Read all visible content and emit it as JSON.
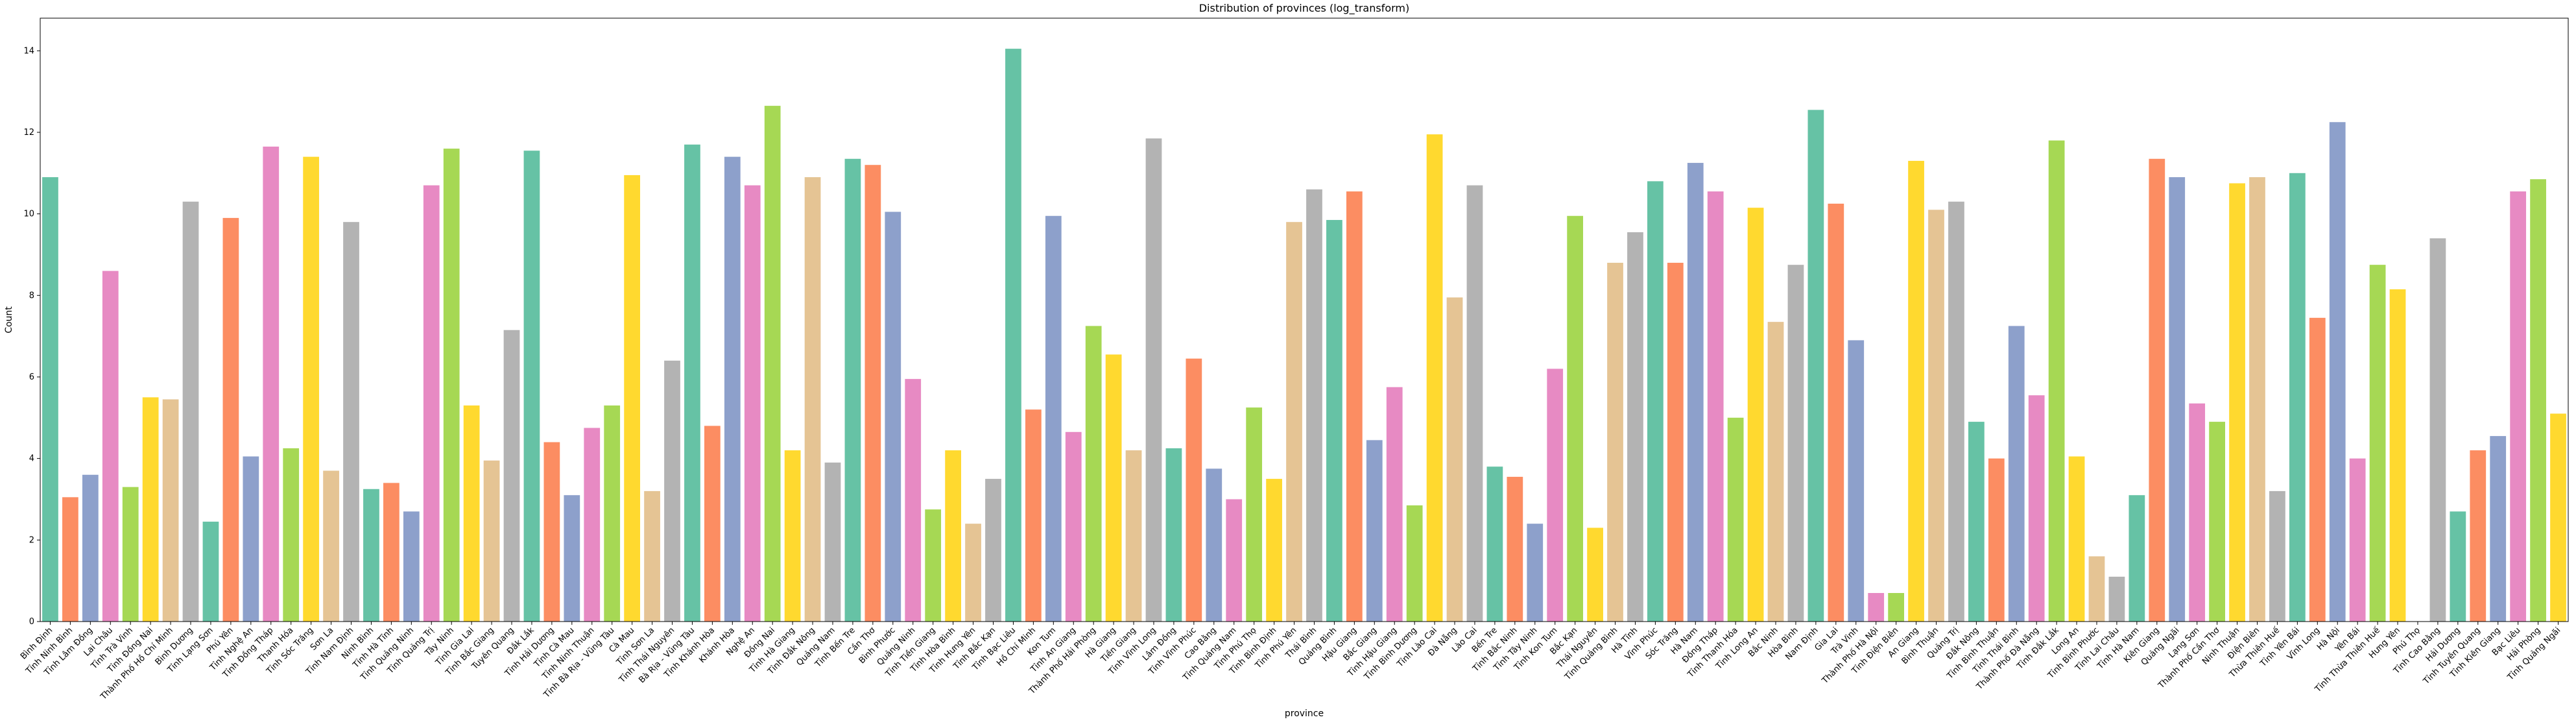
{
  "chart_data": {
    "type": "bar",
    "title": "Distribution of provinces (log_transform)",
    "x_label": "province",
    "y_label": "Count",
    "ylim": [
      0,
      14.8
    ],
    "yticks": [
      0,
      2,
      4,
      6,
      8,
      10,
      12,
      14
    ],
    "colors": [
      "#66c2a5",
      "#fc8d62",
      "#8da0cb",
      "#e78ac3",
      "#a6d854",
      "#ffd92f",
      "#e5c494",
      "#b3b3b3"
    ],
    "categories": [
      "Bình Định",
      "Tỉnh Ninh Bình",
      "Tỉnh Lâm Đồng",
      "Lai Châu",
      "Tỉnh Trà Vinh",
      "Tỉnh Đồng Nai",
      "Thành Phố Hồ Chí Minh",
      "Bình Dương",
      "Tỉnh Lạng Sơn",
      "Phú Yên",
      "Tỉnh Nghệ An",
      "Tỉnh Đồng Tháp",
      "Thanh Hóa",
      "Tỉnh Sóc Trăng",
      "Sơn La",
      "Tỉnh Nam Định",
      "Ninh Bình",
      "Tỉnh Hà Tĩnh",
      "Tỉnh Quảng Ninh",
      "Tỉnh Quảng Trị",
      "Tây Ninh",
      "Tỉnh Gia Lai",
      "Tỉnh Bắc Giang",
      "Tuyên Quang",
      "Đắk Lắk",
      "Tỉnh Hải Dương",
      "Tỉnh Cà Mau",
      "Tỉnh Ninh Thuận",
      "Tỉnh Bà Rịa - Vũng Tàu",
      "Cà Mau",
      "Tỉnh Sơn La",
      "Tỉnh Thái Nguyên",
      "Bà Rịa - Vũng Tàu",
      "Tỉnh Khánh Hòa",
      "Khánh Hòa",
      "Nghệ An",
      "Đồng Nai",
      "Tỉnh Hà Giang",
      "Tỉnh Đắk Nông",
      "Quảng Nam",
      "Tỉnh Bến Tre",
      "Cần Thơ",
      "Bình Phước",
      "Quảng Ninh",
      "Tỉnh Tiền Giang",
      "Tỉnh Hòa Bình",
      "Tỉnh Hưng Yên",
      "Tỉnh Bắc Kạn",
      "Tỉnh Bạc Liêu",
      "Hồ Chí Minh",
      "Kon Tum",
      "Tỉnh An Giang",
      "Thành Phố Hải Phòng",
      "Hà Giang",
      "Tiền Giang",
      "Tỉnh Vĩnh Long",
      "Lâm Đồng",
      "Tỉnh Vĩnh Phúc",
      "Cao Bằng",
      "Tỉnh Quảng Nam",
      "Tỉnh Phú Thọ",
      "Tỉnh Bình Định",
      "Tỉnh Phú Yên",
      "Thái Bình",
      "Quảng Bình",
      "Hậu Giang",
      "Bắc Giang",
      "Tỉnh Hậu Giang",
      "Tỉnh Bình Dương",
      "Tỉnh Lào Cai",
      "Đà Nẵng",
      "Lào Cai",
      "Bến Tre",
      "Tỉnh Bắc Ninh",
      "Tỉnh Tây Ninh",
      "Tỉnh Kon Tum",
      "Bắc Kạn",
      "Thái Nguyên",
      "Tỉnh Quảng Bình",
      "Hà Tĩnh",
      "Vĩnh Phúc",
      "Sóc Trăng",
      "Hà Nam",
      "Đồng Tháp",
      "Tỉnh Thanh Hóa",
      "Tỉnh Long An",
      "Bắc Ninh",
      "Hòa Bình",
      "Nam Định",
      "Gia Lai",
      "Trà Vinh",
      "Thành Phố Hà Nội",
      "Tỉnh Điện Biên",
      "An Giang",
      "Bình Thuận",
      "Quảng Trị",
      "Đắk Nông",
      "Tỉnh Bình Thuận",
      "Tỉnh Thái Bình",
      "Thành Phố Đà Nẵng",
      "Tỉnh Đắk Lắk",
      "Long An",
      "Tỉnh Bình Phước",
      "Tỉnh Lai Châu",
      "Tỉnh Hà Nam",
      "Kiên Giang",
      "Quảng Ngãi",
      "Lạng Sơn",
      "Thành Phố Cần Thơ",
      "Ninh Thuận",
      "Điện Biên",
      "Thừa Thiên Huế",
      "Tỉnh Yên Bái",
      "Vĩnh Long",
      "Hà Nội",
      "Yên Bái",
      "Tỉnh Thừa Thiên Huế",
      "Hưng Yên",
      "Phú Thọ",
      "Tỉnh Cao Bằng",
      "Hải Dương",
      "Tỉnh Tuyên Quang",
      "Tỉnh Kiên Giang",
      "Bạc Liêu",
      "Hải Phòng",
      "Tỉnh Quảng Ngãi"
    ],
    "values": [
      10.9,
      3.05,
      3.6,
      8.6,
      3.3,
      5.5,
      5.45,
      10.3,
      2.45,
      9.9,
      4.05,
      11.65,
      4.25,
      11.4,
      3.7,
      9.8,
      3.25,
      3.4,
      2.7,
      10.7,
      11.6,
      5.3,
      3.95,
      7.15,
      11.55,
      4.4,
      3.1,
      4.75,
      5.3,
      10.95,
      3.2,
      6.4,
      11.7,
      4.8,
      11.4,
      10.7,
      12.65,
      4.2,
      10.9,
      3.9,
      11.35,
      11.2,
      10.05,
      5.95,
      2.75,
      4.2,
      2.4,
      3.5,
      14.05,
      5.2,
      9.95,
      4.65,
      7.25,
      6.55,
      4.2,
      11.85,
      4.25,
      6.45,
      3.75,
      3.0,
      5.25,
      3.5,
      9.8,
      10.6,
      9.85,
      10.55,
      4.45,
      5.75,
      2.85,
      11.95,
      7.95,
      10.7,
      3.8,
      3.55,
      2.4,
      6.2,
      9.95,
      2.3,
      8.8,
      9.55,
      10.8,
      8.8,
      11.25,
      10.55,
      5.0,
      10.15,
      7.35,
      8.75,
      12.55,
      10.25,
      6.9,
      0.7,
      0.7,
      11.3,
      10.1,
      10.3,
      4.9,
      4.0,
      7.25,
      5.55,
      11.8,
      4.05,
      1.6,
      1.1,
      3.1,
      11.35,
      10.9,
      5.35,
      4.9,
      10.75,
      10.9,
      3.2,
      11.0,
      7.45,
      12.25,
      4.0,
      8.75,
      8.15,
      0,
      9.4,
      2.7,
      4.2,
      4.55,
      10.55,
      10.85,
      5.1
    ]
  }
}
